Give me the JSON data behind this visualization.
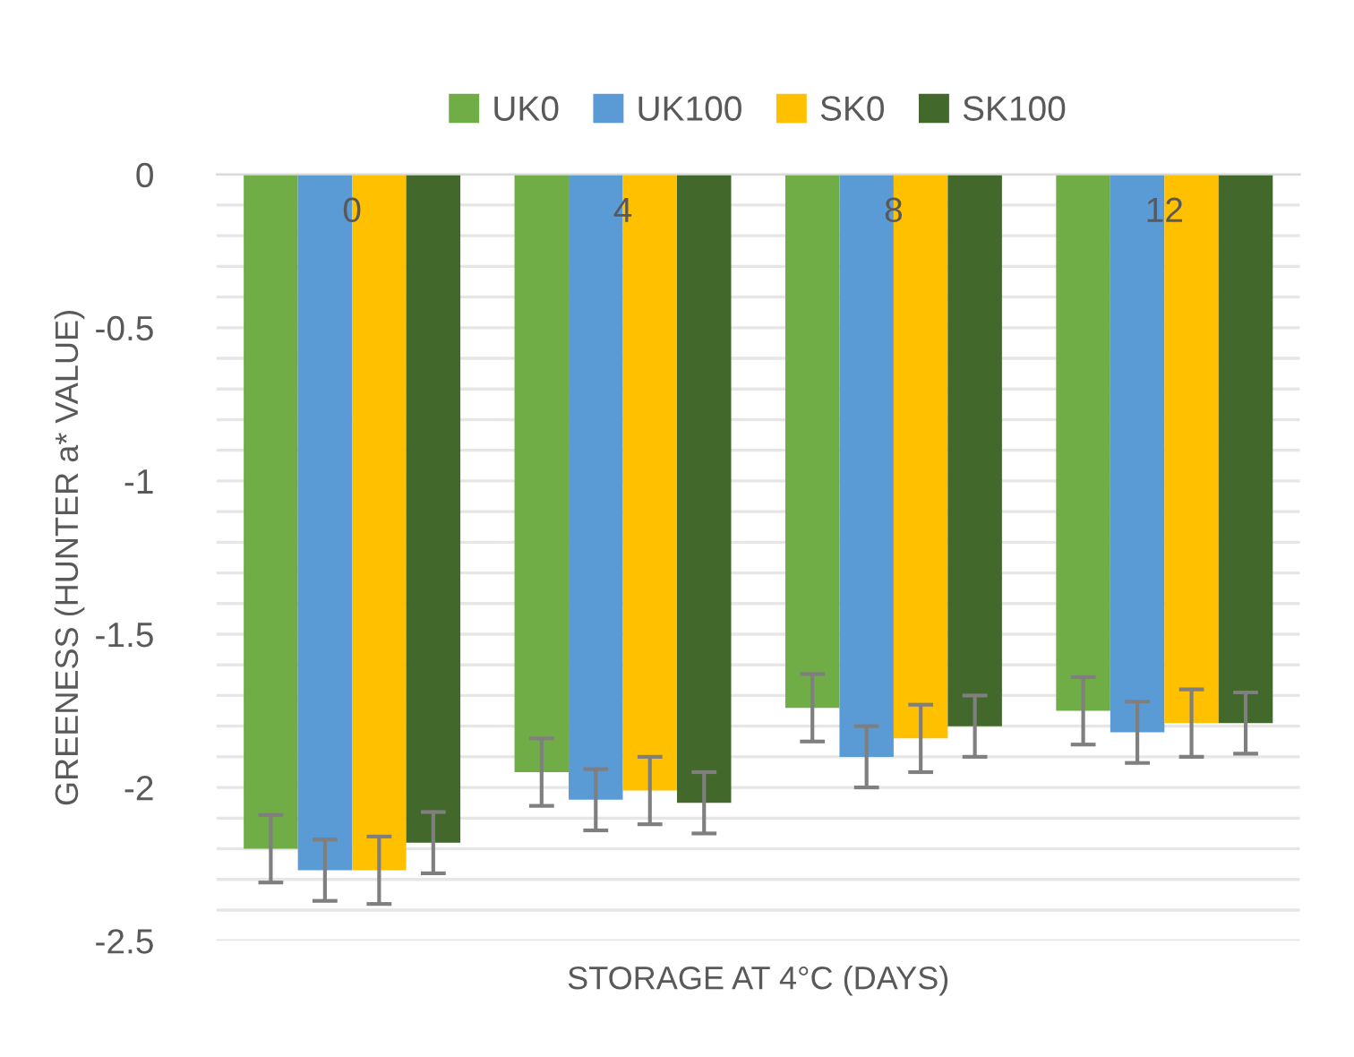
{
  "chart_data": {
    "type": "bar",
    "xlabel": "STORAGE AT 4°C (DAYS)",
    "ylabel": "GREENESS (HUNTER a* VALUE)",
    "categories": [
      "0",
      "4",
      "8",
      "12"
    ],
    "series": [
      {
        "name": "UK0",
        "color": "#70ad47",
        "values": [
          -2.2,
          -1.95,
          -1.74,
          -1.75
        ],
        "errors": [
          0.11,
          0.11,
          0.11,
          0.11
        ]
      },
      {
        "name": "UK100",
        "color": "#5b9bd5",
        "values": [
          -2.27,
          -2.04,
          -1.9,
          -1.82
        ],
        "errors": [
          0.1,
          0.1,
          0.1,
          0.1
        ]
      },
      {
        "name": "SK0",
        "color": "#ffc000",
        "values": [
          -2.27,
          -2.01,
          -1.84,
          -1.79
        ],
        "errors": [
          0.11,
          0.11,
          0.11,
          0.11
        ]
      },
      {
        "name": "SK100",
        "color": "#43682b",
        "values": [
          -2.18,
          -2.05,
          -1.8,
          -1.79
        ],
        "errors": [
          0.1,
          0.1,
          0.1,
          0.1
        ]
      }
    ],
    "ylim": [
      -2.5,
      0
    ],
    "yticks": [
      0,
      {
        "value": -0.1,
        "label": null
      },
      {
        "value": -0.2,
        "label": null
      },
      {
        "value": -0.3,
        "label": null
      },
      {
        "value": -0.4,
        "label": null
      },
      -0.5,
      {
        "value": -0.6,
        "label": null
      },
      {
        "value": -0.7,
        "label": null
      },
      {
        "value": -0.8,
        "label": null
      },
      {
        "value": -0.9,
        "label": null
      },
      -1,
      {
        "value": -1.1,
        "label": null
      },
      {
        "value": -1.2,
        "label": null
      },
      {
        "value": -1.3,
        "label": null
      },
      {
        "value": -1.4,
        "label": null
      },
      -1.5,
      {
        "value": -1.6,
        "label": null
      },
      {
        "value": -1.7,
        "label": null
      },
      {
        "value": -1.8,
        "label": null
      },
      {
        "value": -1.9,
        "label": null
      },
      -2,
      {
        "value": -2.1,
        "label": null
      },
      {
        "value": -2.2,
        "label": null
      },
      {
        "value": -2.3,
        "label": null
      },
      {
        "value": -2.4,
        "label": null
      },
      -2.5
    ],
    "grid": "y",
    "legend": "top"
  }
}
